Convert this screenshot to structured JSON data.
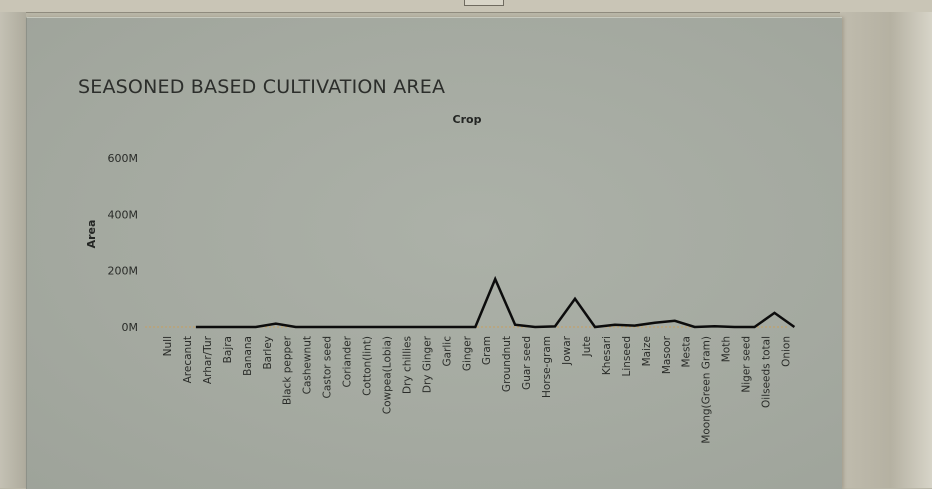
{
  "window": {
    "background": "#b9b6a7"
  },
  "chart_data": {
    "type": "line",
    "title": "SEASONED BASED CULTIVATION AREA",
    "column_header": "Crop",
    "xlabel": "",
    "ylabel": "Area",
    "ylim": [
      0,
      600000000
    ],
    "y_ticks": [
      {
        "value": 0,
        "label": "0M"
      },
      {
        "value": 200000000,
        "label": "200M"
      },
      {
        "value": 400000000,
        "label": "400M"
      },
      {
        "value": 600000000,
        "label": "600M"
      }
    ],
    "grid": false,
    "zero_line_color": "#c8a060",
    "line_color": "#0c0c0c",
    "categories": [
      "Null",
      "Arecanut",
      "Arhar/Tur",
      "Bajra",
      "Banana",
      "Barley",
      "Black pepper",
      "Cashewnut",
      "Castor seed",
      "Coriander",
      "Cotton(lint)",
      "Cowpea(Lobia)",
      "Dry chillies",
      "Dry Ginger",
      "Garlic",
      "Ginger",
      "Gram",
      "Groundnut",
      "Guar seed",
      "Horse-gram",
      "Jowar",
      "Jute",
      "Khesari",
      "Linseed",
      "Maize",
      "Masoor",
      "Mesta",
      "Moong(Green Gram)",
      "Moth",
      "Niger seed",
      "Oilseeds total",
      "Onion"
    ],
    "series": [
      {
        "values": [
          null,
          0,
          0,
          0,
          0,
          12000000,
          0,
          0,
          0,
          0,
          0,
          0,
          0,
          0,
          0,
          0,
          170000000,
          8000000,
          0,
          2000000,
          100000000,
          0,
          8000000,
          5000000,
          15000000,
          22000000,
          0,
          3000000,
          0,
          0,
          50000000,
          0
        ]
      }
    ]
  }
}
